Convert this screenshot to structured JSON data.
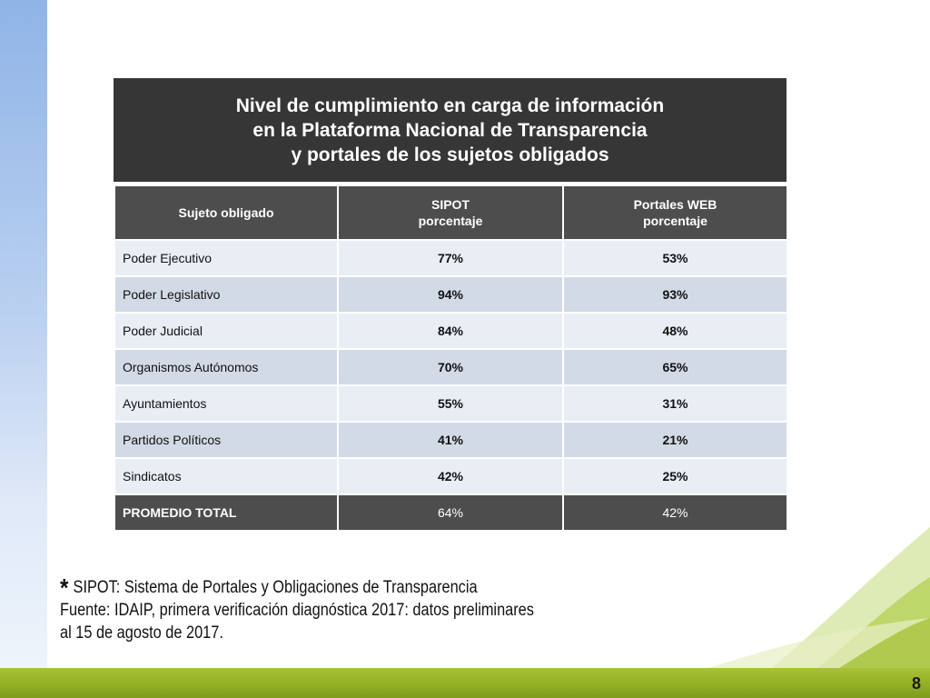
{
  "title": "Nivel de cumplimiento en carga de información\nen la Plataforma Nacional de Transparencia\ny portales de los sujetos obligados",
  "table": {
    "headers": {
      "col1": "Sujeto obligado",
      "col2_line1": "SIPOT",
      "col2_line2": "porcentaje",
      "col3_line1": "Portales WEB",
      "col3_line2": "porcentaje"
    },
    "rows": [
      {
        "name": "Poder Ejecutivo",
        "sipot": "77%",
        "web": "53%"
      },
      {
        "name": "Poder Legislativo",
        "sipot": "94%",
        "web": "93%"
      },
      {
        "name": "Poder Judicial",
        "sipot": "84%",
        "web": "48%"
      },
      {
        "name": "Organismos Autónomos",
        "sipot": "70%",
        "web": "65%"
      },
      {
        "name": "Ayuntamientos",
        "sipot": "55%",
        "web": "31%"
      },
      {
        "name": "Partidos Políticos",
        "sipot": "41%",
        "web": "21%"
      },
      {
        "name": "Sindicatos",
        "sipot": "42%",
        "web": "25%"
      }
    ],
    "total": {
      "name": "PROMEDIO TOTAL",
      "sipot": "64%",
      "web": "42%"
    }
  },
  "footnote": {
    "star": "*",
    "line1": "SIPOT: Sistema de Portales y Obligaciones de Transparencia",
    "line2": "Fuente: IDAIP, primera verificación diagnóstica 2017: datos preliminares",
    "line3": "al 15 de agosto de 2017."
  },
  "page_number": "8",
  "colors": {
    "header_dark": "#363636",
    "header_gray": "#4d4d4d",
    "row_light": "#e9edf4",
    "row_dark": "#d2dae6",
    "accent_green": "#8fae25",
    "accent_blue": "#8fb4e6"
  }
}
